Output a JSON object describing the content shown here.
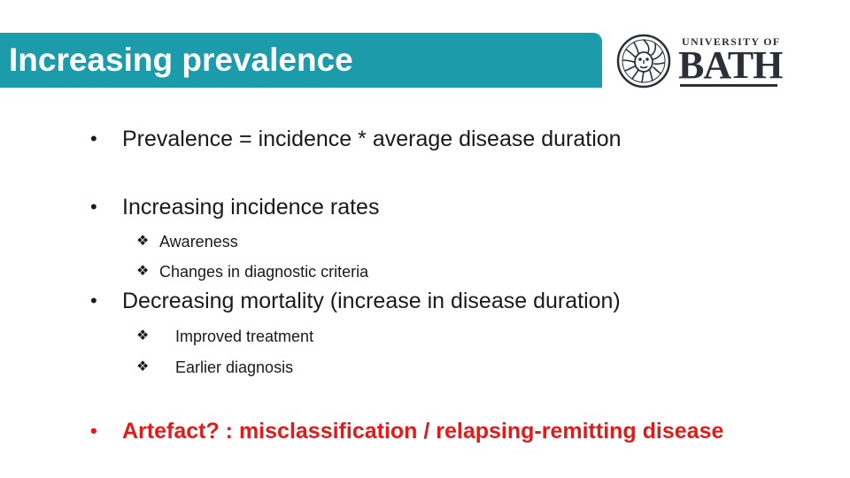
{
  "slide": {
    "title": "Increasing prevalence",
    "logo": {
      "top_line": "UNIVERSITY OF",
      "main_word": "BATH"
    },
    "bullets": [
      {
        "text": "Prevalence = incidence * average disease duration"
      },
      {
        "text": "Increasing incidence rates",
        "sub": [
          "Awareness",
          "Changes in diagnostic criteria"
        ]
      },
      {
        "text": "Decreasing mortality (increase in disease duration)",
        "sub": [
          "Improved treatment",
          "Earlier diagnosis"
        ]
      },
      {
        "text": "Artefact? : misclassification / relapsing-remitting disease"
      }
    ],
    "bullet_symbol": "•",
    "sub_bullet_symbol": "❖"
  },
  "colors": {
    "title_bar": "#1c9cab",
    "title_text": "#ffffff",
    "body_text": "#1a1a1a",
    "highlight": "#e21a1a",
    "logo": "#2a2f38"
  },
  "icons": {
    "logo_seal": "bath-seal-icon",
    "sub_bullet": "diamond-bullet-icon"
  }
}
